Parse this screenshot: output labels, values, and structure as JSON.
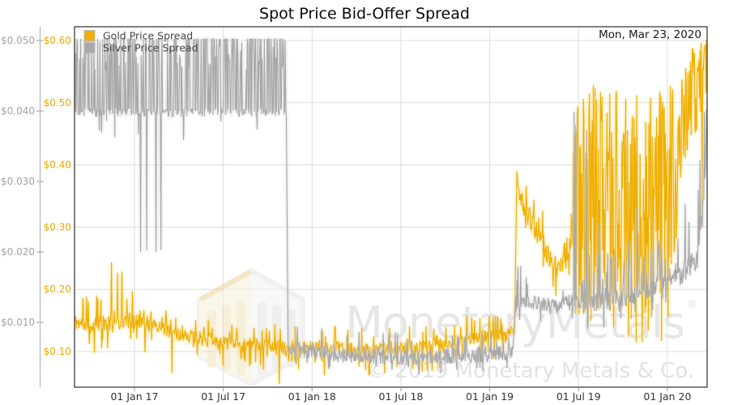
{
  "title": "Spot Price Bid-Offer Spread",
  "date_label": "Mon, Mar 23, 2020",
  "legend": [
    {
      "label": "Gold Price Spread",
      "color": "#EFAE00"
    },
    {
      "label": "Silver Price Spread",
      "color": "#A9A9A9"
    }
  ],
  "watermark": {
    "brand": "MonetaryMetals",
    "registered": "®",
    "copyright": "© 2019 Monetary Metals & Co."
  },
  "chart_data": {
    "type": "line",
    "title": "Spot Price Bid-Offer Spread",
    "legend_position": "top-left",
    "grid": {
      "horizontal": "gold-axis-ticks",
      "vertical": "x-ticks"
    },
    "x_range": [
      2016.663,
      2020.224
    ],
    "samples": 1150,
    "x_ticks": [
      {
        "t": 2017.0,
        "label": "01 Jan 17"
      },
      {
        "t": 2017.5,
        "label": "01 Jul 17"
      },
      {
        "t": 2018.0,
        "label": "01 Jan 18"
      },
      {
        "t": 2018.5,
        "label": "01 Jul 18"
      },
      {
        "t": 2019.0,
        "label": "01 Jan 19"
      },
      {
        "t": 2019.5,
        "label": "01 Jul 19"
      },
      {
        "t": 2020.0,
        "label": "01 Jan 20"
      }
    ],
    "axes": {
      "gold": {
        "side": "left-inner",
        "label_color": "#E9A800",
        "ylim": [
          0.044,
          0.619
        ],
        "ticks": [
          {
            "v": 0.6,
            "label": "$0.60"
          },
          {
            "v": 0.5,
            "label": "$0.50"
          },
          {
            "v": 0.4,
            "label": "$0.40"
          },
          {
            "v": 0.3,
            "label": "$0.30"
          },
          {
            "v": 0.2,
            "label": "$0.20"
          },
          {
            "v": 0.1,
            "label": "$0.10"
          }
        ]
      },
      "silver": {
        "side": "left-outer",
        "label_color": "#A3A3A3",
        "ylim": [
          0.0008,
          0.0515
        ],
        "ticks": [
          {
            "v": 0.05,
            "label": "$0.050"
          },
          {
            "v": 0.04,
            "label": "$0.040"
          },
          {
            "v": 0.03,
            "label": "$0.030"
          },
          {
            "v": 0.02,
            "label": "$0.020"
          },
          {
            "v": 0.01,
            "label": "$0.010"
          }
        ]
      }
    },
    "series": [
      {
        "name": "Gold Price Spread",
        "axis": "gold",
        "color": "#EFAE00",
        "glow": "#F9D66B",
        "seed": 11,
        "anchors": [
          [
            2016.663,
            0.148
          ],
          [
            2016.75,
            0.142
          ],
          [
            2016.85,
            0.147
          ],
          [
            2016.95,
            0.15
          ],
          [
            2017.05,
            0.147
          ],
          [
            2017.15,
            0.138
          ],
          [
            2017.25,
            0.127
          ],
          [
            2017.35,
            0.124
          ],
          [
            2017.45,
            0.119
          ],
          [
            2017.55,
            0.115
          ],
          [
            2017.65,
            0.112
          ],
          [
            2017.75,
            0.111
          ],
          [
            2017.85,
            0.108
          ],
          [
            2017.95,
            0.107
          ],
          [
            2018.05,
            0.108
          ],
          [
            2018.15,
            0.106
          ],
          [
            2018.25,
            0.104
          ],
          [
            2018.35,
            0.103
          ],
          [
            2018.45,
            0.105
          ],
          [
            2018.55,
            0.107
          ],
          [
            2018.65,
            0.108
          ],
          [
            2018.75,
            0.112
          ],
          [
            2018.85,
            0.118
          ],
          [
            2018.95,
            0.124
          ],
          [
            2019.05,
            0.127
          ],
          [
            2019.14,
            0.132
          ],
          [
            2019.152,
            0.375
          ],
          [
            2019.19,
            0.335
          ],
          [
            2019.24,
            0.305
          ],
          [
            2019.3,
            0.275
          ],
          [
            2019.36,
            0.235
          ],
          [
            2019.42,
            0.243
          ],
          [
            2019.465,
            0.285
          ],
          [
            2019.5,
            0.315
          ],
          [
            2019.62,
            0.325
          ],
          [
            2019.75,
            0.315
          ],
          [
            2019.88,
            0.305
          ],
          [
            2019.97,
            0.315
          ],
          [
            2020.04,
            0.345
          ],
          [
            2020.06,
            0.46
          ],
          [
            2020.1,
            0.53
          ],
          [
            2020.15,
            0.565
          ],
          [
            2020.224,
            0.575
          ]
        ],
        "noise": [
          {
            "t0": 2016.663,
            "t1": 2017.1,
            "jit": 0.013,
            "p_up": 0.1,
            "up": [
              0.015,
              0.05
            ],
            "p_dn": 0.1,
            "dn": [
              0.015,
              0.05
            ]
          },
          {
            "t0": 2017.1,
            "t1": 2019.14,
            "jit": 0.01,
            "p_up": 0.08,
            "up": [
              0.008,
              0.035
            ],
            "p_dn": 0.08,
            "dn": [
              0.008,
              0.04
            ]
          },
          {
            "t0": 2019.152,
            "t1": 2019.471,
            "jit": 0.018,
            "p_up": 0.08,
            "up": [
              0.02,
              0.06
            ],
            "p_dn": 0.08,
            "dn": [
              0.02,
              0.05
            ]
          },
          {
            "t0": 2019.471,
            "t1": 2020.045,
            "jit": 0.02,
            "p_up": 0.42,
            "up": [
              0.03,
              0.21
            ],
            "p_dn": 0.42,
            "dn": [
              0.03,
              0.2
            ],
            "clip_lo": 0.105,
            "clip_hi": 0.6
          },
          {
            "t0": 2020.045,
            "t1": 2020.225,
            "jit": 0.022,
            "p_up": 0.2,
            "up": [
              0.01,
              0.04
            ],
            "p_dn": 0.3,
            "dn": [
              0.03,
              0.13
            ],
            "clip_hi": 0.602
          }
        ],
        "spikes": [
          [
            2016.872,
            0.243
          ],
          [
            2016.905,
            0.226
          ],
          [
            2016.928,
            0.228
          ],
          [
            2017.21,
            0.066
          ],
          [
            2017.5,
            0.078
          ],
          [
            2017.815,
            0.048
          ],
          [
            2018.07,
            0.062
          ],
          [
            2018.32,
            0.062
          ],
          [
            2018.62,
            0.068
          ],
          [
            2018.87,
            0.158
          ],
          [
            2019.02,
            0.156
          ],
          [
            2020.195,
            0.3
          ]
        ]
      },
      {
        "name": "Silver Price Spread",
        "axis": "silver",
        "color": "#A9A9A9",
        "glow": "#D6D6D6",
        "seed": 7,
        "anchors": [
          [
            2016.663,
            0.0398
          ],
          [
            2017.855,
            0.0398
          ],
          [
            2017.865,
            0.0062
          ],
          [
            2018.0,
            0.0058
          ],
          [
            2018.3,
            0.0052
          ],
          [
            2018.6,
            0.005
          ],
          [
            2018.9,
            0.0054
          ],
          [
            2019.06,
            0.0056
          ],
          [
            2019.13,
            0.0058
          ],
          [
            2019.145,
            0.0128
          ],
          [
            2019.2,
            0.0132
          ],
          [
            2019.35,
            0.0122
          ],
          [
            2019.48,
            0.013
          ],
          [
            2019.6,
            0.0128
          ],
          [
            2019.75,
            0.0134
          ],
          [
            2019.85,
            0.0142
          ],
          [
            2019.95,
            0.0155
          ],
          [
            2020.05,
            0.0168
          ],
          [
            2020.12,
            0.0178
          ],
          [
            2020.17,
            0.0195
          ],
          [
            2020.2,
            0.0262
          ],
          [
            2020.224,
            0.033
          ]
        ],
        "noise": [
          {
            "t0": 2016.663,
            "t1": 2017.855,
            "jit": 0.0006,
            "p_up": 0.5,
            "up": [
              0.006,
              0.016
            ],
            "p_dn": 0.02,
            "dn": [
              0.001,
              0.004
            ],
            "clip_hi": 0.0502
          },
          {
            "t0": 2017.865,
            "t1": 2019.13,
            "jit": 0.0011,
            "p_up": 0.05,
            "up": [
              0.001,
              0.0035
            ],
            "p_dn": 0.07,
            "dn": [
              0.0008,
              0.0026
            ],
            "clip_lo": 0.0022
          },
          {
            "t0": 2019.145,
            "t1": 2019.471,
            "jit": 0.0011,
            "p_up": 0.07,
            "up": [
              0.001,
              0.005
            ],
            "p_dn": 0.05,
            "dn": [
              0.001,
              0.0035
            ]
          },
          {
            "t0": 2019.471,
            "t1": 2020.045,
            "jit": 0.0013,
            "p_up": 0.12,
            "up": [
              0.001,
              0.007
            ],
            "p_dn": 0.06,
            "dn": [
              0.001,
              0.004
            ]
          },
          {
            "t0": 2020.045,
            "t1": 2020.225,
            "jit": 0.0018,
            "p_up": 0.18,
            "up": [
              0.002,
              0.011
            ],
            "p_dn": 0.06,
            "dn": [
              0.001,
              0.004
            ],
            "clip_hi": 0.046
          }
        ],
        "spikes": [
          [
            2017.035,
            0.02
          ],
          [
            2017.07,
            0.0203
          ],
          [
            2017.12,
            0.02
          ],
          [
            2017.15,
            0.0203
          ],
          [
            2019.474,
            0.0398
          ],
          [
            2019.483,
            0.038
          ],
          [
            2019.545,
            0.0372
          ],
          [
            2019.62,
            0.024
          ],
          [
            2019.78,
            0.0215
          ],
          [
            2019.83,
            0.0262
          ],
          [
            2020.185,
            0.033
          ],
          [
            2020.208,
            0.0398
          ],
          [
            2020.218,
            0.036
          ]
        ]
      }
    ]
  }
}
